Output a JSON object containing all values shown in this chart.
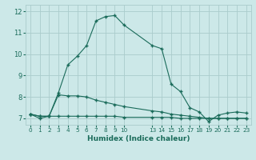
{
  "xlabel": "Humidex (Indice chaleur)",
  "bg_color": "#cce8e8",
  "grid_color": "#aacccc",
  "line_color": "#1a6b5a",
  "x_values": [
    0,
    1,
    2,
    3,
    4,
    5,
    6,
    7,
    8,
    9,
    10,
    13,
    14,
    15,
    16,
    17,
    18,
    19,
    20,
    21,
    22,
    23
  ],
  "line1_y": [
    7.2,
    7.0,
    7.1,
    8.2,
    9.5,
    9.9,
    10.4,
    11.55,
    11.75,
    11.8,
    11.35,
    10.4,
    10.25,
    8.6,
    8.25,
    7.5,
    7.3,
    6.85,
    7.15,
    7.25,
    7.3,
    7.25
  ],
  "line2_y": [
    7.2,
    7.1,
    7.1,
    8.1,
    8.05,
    8.05,
    8.0,
    7.85,
    7.75,
    7.65,
    7.55,
    7.35,
    7.3,
    7.2,
    7.15,
    7.1,
    7.05,
    7.0,
    7.0,
    7.0,
    7.0,
    7.0
  ],
  "line3_y": [
    7.2,
    7.1,
    7.1,
    7.1,
    7.1,
    7.1,
    7.1,
    7.1,
    7.1,
    7.1,
    7.05,
    7.05,
    7.05,
    7.05,
    7.0,
    7.0,
    7.0,
    7.0,
    7.0,
    7.0,
    7.0,
    7.0
  ],
  "ylim": [
    6.7,
    12.3
  ],
  "yticks": [
    7,
    8,
    9,
    10,
    11,
    12
  ],
  "xtick_labels": [
    "0",
    "1",
    "2",
    "3",
    "4",
    "5",
    "6",
    "7",
    "8",
    "9",
    "10",
    "13",
    "14",
    "15",
    "16",
    "17",
    "18",
    "19",
    "20",
    "21",
    "22",
    "23"
  ]
}
